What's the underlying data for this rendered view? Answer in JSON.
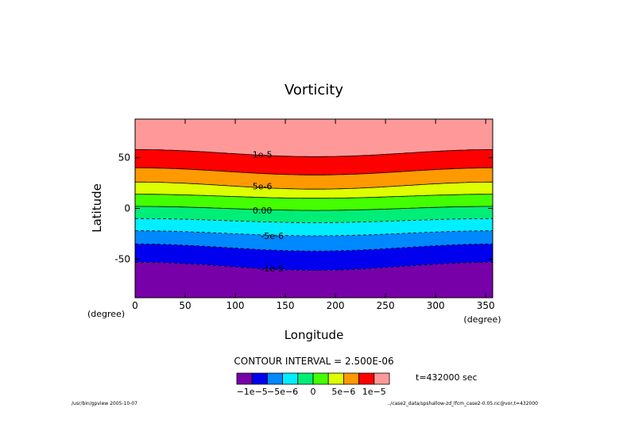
{
  "chart_data": {
    "type": "contour",
    "title": "Vorticity",
    "xlabel": "Longitude",
    "ylabel": "Latitude",
    "x_unit": "(degree)",
    "y_unit": "(degree)",
    "xlim": [
      0,
      357
    ],
    "ylim": [
      -88,
      88
    ],
    "x_ticks": [
      0,
      50,
      100,
      150,
      200,
      250,
      300,
      350
    ],
    "y_ticks": [
      -50,
      0,
      50
    ],
    "contour_interval_text": "CONTOUR INTERVAL = 2.500E-06",
    "time_text": "t=432000 sec",
    "bands": [
      {
        "level": -1.25e-05,
        "color": "#7700a8"
      },
      {
        "level": -1e-05,
        "color": "#0000ee"
      },
      {
        "level": -7.5e-06,
        "color": "#0088ff"
      },
      {
        "level": -5e-06,
        "color": "#00eeff"
      },
      {
        "level": -2.5e-06,
        "color": "#00ee77"
      },
      {
        "level": 0.0,
        "color": "#44ff00"
      },
      {
        "level": 2.5e-06,
        "color": "#ddff00"
      },
      {
        "level": 5e-06,
        "color": "#ff9900"
      },
      {
        "level": 7.5e-06,
        "color": "#ff0000"
      },
      {
        "level": 1e-05,
        "color": "#ff9999"
      }
    ],
    "contours": [
      {
        "level": -1e-05,
        "lat_edge": -53,
        "lat_mid": -61,
        "dashed": true
      },
      {
        "level": -7.5e-06,
        "lat_edge": -35,
        "lat_mid": -42,
        "dashed": true
      },
      {
        "level": -5e-06,
        "lat_edge": -22,
        "lat_mid": -27,
        "dashed": true
      },
      {
        "level": -2.5e-06,
        "lat_edge": -10,
        "lat_mid": -14,
        "dashed": true
      },
      {
        "level": 0.0,
        "lat_edge": 2,
        "lat_mid": -2,
        "dashed": false
      },
      {
        "level": 2.5e-06,
        "lat_edge": 14,
        "lat_mid": 10,
        "dashed": false
      },
      {
        "level": 5e-06,
        "lat_edge": 26,
        "lat_mid": 19,
        "dashed": false
      },
      {
        "level": 7.5e-06,
        "lat_edge": 40,
        "lat_mid": 33,
        "dashed": false
      },
      {
        "level": 1e-05,
        "lat_edge": 58,
        "lat_mid": 51,
        "dashed": false
      }
    ],
    "contour_labels": [
      {
        "text": "1e-5",
        "lon": 127,
        "lat": 53
      },
      {
        "text": "5e-6",
        "lon": 127,
        "lat": 22
      },
      {
        "text": "0.00",
        "lon": 127,
        "lat": -2
      },
      {
        "text": "-5e-6",
        "lon": 137,
        "lat": -27
      },
      {
        "text": "-1e-5",
        "lon": 137,
        "lat": -59
      }
    ],
    "colorbar_labels": [
      "−1e−5",
      "−5e−6",
      "0",
      "5e−6",
      "1e−5"
    ]
  },
  "footer": {
    "left": "/usr/bin/gpview  2005-10-07",
    "right": "../case2_data/spshallow-zd_lfcm_case2-0.05.nc@vor,t=432000"
  }
}
